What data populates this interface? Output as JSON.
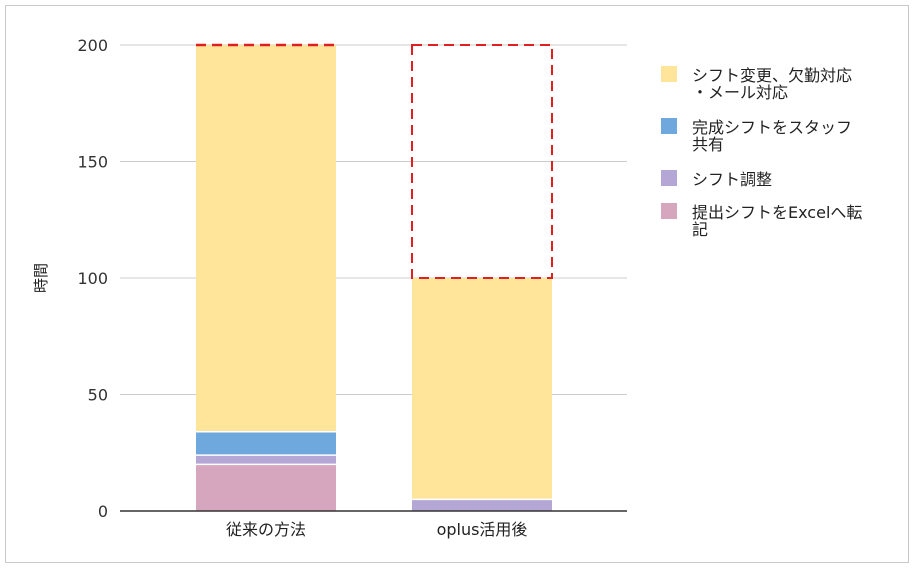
{
  "chart_data": {
    "type": "bar",
    "stacked": true,
    "ylabel": "時間",
    "ylim": [
      0,
      200
    ],
    "yticks": [
      0,
      50,
      100,
      150,
      200
    ],
    "categories": [
      "従来の方法",
      "oplus活用後"
    ],
    "series": [
      {
        "name": "提出シフトをExcelへ転記",
        "legend_lines": [
          "提出シフトをExcelへ転",
          "記"
        ],
        "color": "#d5a6bd",
        "values": [
          20,
          0
        ]
      },
      {
        "name": "シフト調整",
        "legend_lines": [
          "シフト調整"
        ],
        "color": "#b4a7d6",
        "values": [
          4,
          5
        ]
      },
      {
        "name": "完成シフトをスタッフ共有",
        "legend_lines": [
          "完成シフトをスタッフ",
          "共有"
        ],
        "color": "#6fa8dc",
        "values": [
          10,
          0
        ]
      },
      {
        "name": "シフト変更、欠勤対応・メール対応",
        "legend_lines": [
          "シフト変更、欠勤対応",
          "・メール対応"
        ],
        "color": "#ffe599",
        "values": [
          166,
          95
        ]
      }
    ],
    "dashed_outlines": [
      {
        "category": "従来の方法",
        "from": 200,
        "to": 200,
        "top_only": true
      },
      {
        "category": "oplus活用後",
        "from": 100,
        "to": 200,
        "top_only": false
      }
    ],
    "outline_color": "#e02020",
    "grid": true,
    "legend_position": "right"
  }
}
